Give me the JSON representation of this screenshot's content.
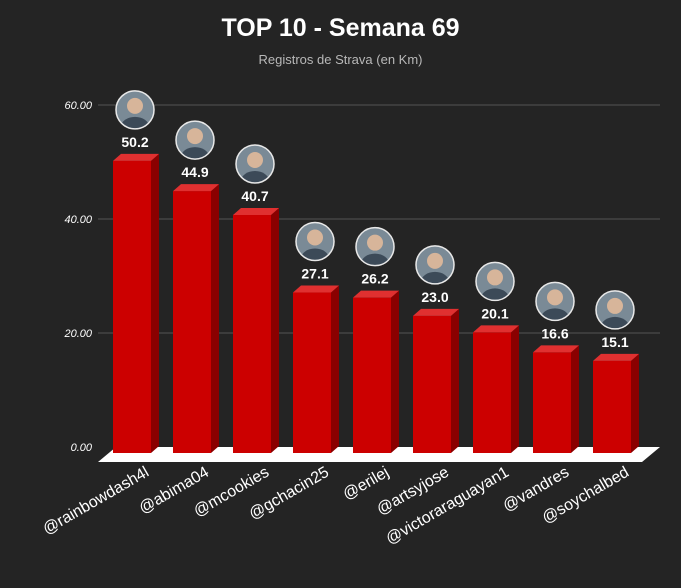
{
  "title": "TOP 10 - Semana 69",
  "subtitle": "Registros de Strava (en Km)",
  "colors": {
    "background": "#242424",
    "bar_front": "#cc0000",
    "bar_side": "#8a0000",
    "bar_top": "#e03030",
    "floor": "#ffffff",
    "grid": "#555555"
  },
  "chart_data": {
    "type": "bar",
    "title": "TOP 10 - Semana 69",
    "subtitle": "Registros de Strava (en Km)",
    "categories": [
      "@rainbowdash4l",
      "@abima04",
      "@mcookies",
      "@gchacin25",
      "@erilej",
      "@artsyjose",
      "@victoraraguayan1",
      "@vandres",
      "@soychalbed"
    ],
    "values": [
      50.2,
      44.9,
      40.7,
      27.1,
      26.2,
      23.0,
      20.1,
      16.6,
      15.1
    ],
    "value_labels": [
      "50.2",
      "44.9",
      "40.7",
      "27.1",
      "26.2",
      "23.0",
      "20.1",
      "16.6",
      "15.1"
    ],
    "yticks": [
      "0.00",
      "20.00",
      "40.00",
      "60.00"
    ],
    "ytick_values": [
      0,
      20,
      40,
      60
    ],
    "ylim": [
      0,
      60
    ],
    "xlabel": "",
    "ylabel": "",
    "grid": true,
    "style": "3d-bar",
    "avatars": [
      "avatar-icon",
      "avatar-icon",
      "avatar-icon",
      "avatar-icon",
      "avatar-icon",
      "avatar-icon",
      "avatar-icon",
      "avatar-icon",
      "avatar-icon"
    ]
  }
}
